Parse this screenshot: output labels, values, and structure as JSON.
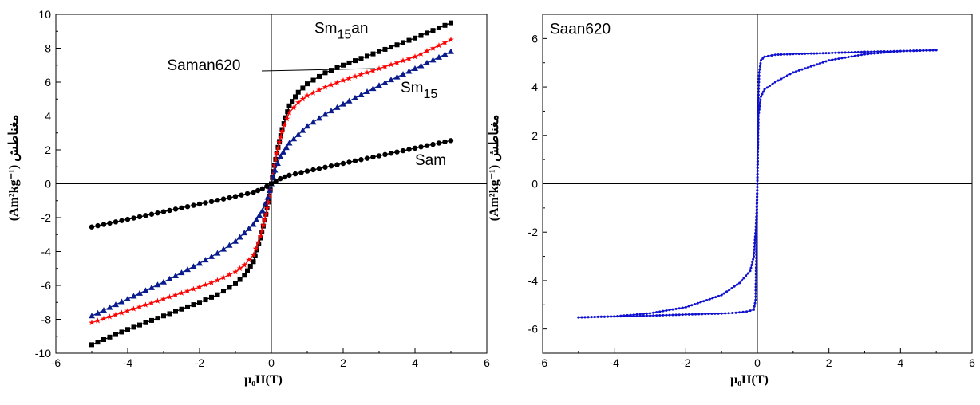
{
  "chart_data": [
    {
      "type": "scatter",
      "xlabel": "μ₀H(T)",
      "ylabel": "(Am²kg⁻¹) مغناطش",
      "xlim": [
        -6,
        6
      ],
      "ylim": [
        -10,
        10
      ],
      "xticks": [
        -6,
        -4,
        -2,
        0,
        2,
        4,
        6
      ],
      "yticks": [
        -10,
        -8,
        -6,
        -4,
        -2,
        0,
        2,
        4,
        6,
        8,
        10
      ],
      "grid": false,
      "annotations": [
        {
          "text": "Sm",
          "sub": "15",
          "tail": "an",
          "x": 1.2,
          "y": 8.9
        },
        {
          "text": "Saman620",
          "x": -2.9,
          "y": 6.7
        },
        {
          "text": "Sm",
          "sub": "15",
          "tail": "",
          "x": 3.6,
          "y": 5.4
        },
        {
          "text": "Sam",
          "x": 4.0,
          "y": 1.1
        }
      ],
      "series": [
        {
          "color": "#000000",
          "marker": "square",
          "x": [
            -5,
            -4,
            -3,
            -2,
            -1.5,
            -1,
            -0.75,
            -0.5,
            -0.3,
            -0.15,
            0,
            0.15,
            0.3,
            0.5,
            0.75,
            1,
            1.5,
            2,
            3,
            4,
            5
          ],
          "y": [
            -9.5,
            -8.6,
            -7.8,
            -7.0,
            -6.55,
            -5.9,
            -5.4,
            -4.6,
            -3.2,
            -1.8,
            0,
            1.8,
            3.2,
            4.6,
            5.4,
            5.9,
            6.55,
            7.0,
            7.8,
            8.6,
            9.5
          ]
        },
        {
          "color": "#ff0000",
          "marker": "star",
          "x": [
            -5,
            -4,
            -3,
            -2,
            -1.5,
            -1,
            -0.75,
            -0.5,
            -0.3,
            -0.15,
            0,
            0.15,
            0.3,
            0.5,
            0.75,
            1,
            1.5,
            2,
            3,
            4,
            5
          ],
          "y": [
            -8.2,
            -7.5,
            -6.8,
            -6.1,
            -5.7,
            -5.2,
            -4.8,
            -4.2,
            -3.1,
            -1.8,
            0,
            1.8,
            3.1,
            4.2,
            4.8,
            5.2,
            5.7,
            6.1,
            6.8,
            7.5,
            8.5
          ]
        },
        {
          "color": "#0a1c8c",
          "marker": "triangle",
          "x": [
            -5,
            -4,
            -3,
            -2,
            -1.5,
            -1,
            -0.5,
            -0.25,
            -0.1,
            0,
            0.1,
            0.25,
            0.5,
            1,
            1.5,
            2,
            3,
            4,
            5
          ],
          "y": [
            -7.8,
            -6.8,
            -5.8,
            -4.7,
            -4.1,
            -3.4,
            -2.4,
            -1.6,
            -0.8,
            0,
            0.8,
            1.6,
            2.4,
            3.4,
            4.1,
            4.7,
            5.8,
            6.8,
            7.8
          ]
        },
        {
          "color": "#000000",
          "marker": "circle",
          "x": [
            -5,
            -4,
            -3,
            -2,
            -1,
            -0.5,
            -0.25,
            0,
            0.25,
            0.5,
            1,
            2,
            3,
            4,
            5
          ],
          "y": [
            -2.55,
            -2.1,
            -1.65,
            -1.2,
            -0.75,
            -0.5,
            -0.3,
            0,
            0.3,
            0.5,
            0.75,
            1.2,
            1.65,
            2.1,
            2.55
          ]
        }
      ]
    },
    {
      "type": "line",
      "xlabel": "μ₀H(T)",
      "ylabel": "(Am²kg⁻¹) مغناطش",
      "xlim": [
        -6,
        6
      ],
      "ylim": [
        -7,
        7
      ],
      "xticks": [
        -6,
        -4,
        -2,
        0,
        2,
        4,
        6
      ],
      "yticks": [
        -6,
        -4,
        -2,
        0,
        2,
        4,
        6
      ],
      "grid": false,
      "annotations": [
        {
          "text": "Saan620",
          "x": -5.8,
          "y": 6.2
        }
      ],
      "series": [
        {
          "color": "#1010d0",
          "marker": "dot",
          "x": [
            5,
            4,
            3,
            2,
            1.5,
            1,
            0.5,
            0.2,
            0.1,
            0.05,
            0.02,
            0,
            -0.05,
            -0.1,
            -0.3,
            -0.6,
            -1,
            -2,
            -3,
            -4,
            -5
          ],
          "y": [
            5.52,
            5.48,
            5.45,
            5.4,
            5.38,
            5.36,
            5.33,
            5.25,
            5.1,
            4.6,
            3.0,
            0,
            -4.8,
            -5.2,
            -5.28,
            -5.33,
            -5.36,
            -5.4,
            -5.45,
            -5.48,
            -5.52
          ]
        },
        {
          "color": "#1010d0",
          "marker": "dot",
          "x": [
            -5,
            -4,
            -3,
            -2,
            -1,
            -0.5,
            -0.2,
            -0.1,
            -0.03,
            0,
            0.03,
            0.1,
            0.2,
            0.5,
            1,
            2,
            3,
            4,
            5
          ],
          "y": [
            -5.52,
            -5.48,
            -5.35,
            -5.1,
            -4.6,
            -4.1,
            -3.6,
            -3.0,
            -1.5,
            0,
            2.8,
            3.6,
            3.9,
            4.2,
            4.6,
            5.1,
            5.35,
            5.48,
            5.52
          ]
        }
      ]
    }
  ]
}
